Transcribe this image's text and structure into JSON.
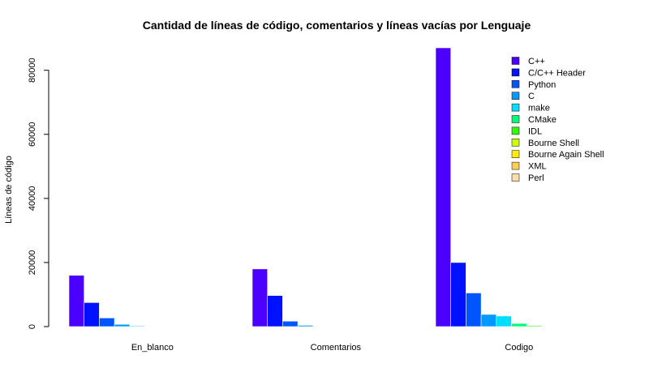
{
  "chart_data": {
    "type": "bar",
    "title": "Cantidad de líneas de código, comentarios y líneas vacías por Lenguaje",
    "xlabel": "",
    "ylabel": "Líneas de código",
    "ylim": [
      0,
      87000
    ],
    "y_ticks": [
      "0",
      "20000",
      "40000",
      "60000",
      "80000"
    ],
    "grid": false,
    "legend_position": "top-right",
    "categories": [
      "En_blanco",
      "Comentarios",
      "Codigo"
    ],
    "series": [
      {
        "name": "C++",
        "color": "#4B00FF",
        "values": [
          16000,
          18000,
          87000
        ]
      },
      {
        "name": "C/C++ Header",
        "color": "#0011FF",
        "values": [
          7500,
          9700,
          20000
        ]
      },
      {
        "name": "Python",
        "color": "#0055FF",
        "values": [
          2700,
          1700,
          10500
        ]
      },
      {
        "name": "C",
        "color": "#0099FF",
        "values": [
          700,
          400,
          3800
        ]
      },
      {
        "name": "make",
        "color": "#00DDFF",
        "values": [
          250,
          80,
          3300
        ]
      },
      {
        "name": "CMake",
        "color": "#00FF77",
        "values": [
          60,
          40,
          1000
        ]
      },
      {
        "name": "IDL",
        "color": "#33FF00",
        "values": [
          20,
          10,
          300
        ]
      },
      {
        "name": "Bourne Shell",
        "color": "#CCFF00",
        "values": [
          10,
          10,
          80
        ]
      },
      {
        "name": "Bourne Again Shell",
        "color": "#FFEE00",
        "values": [
          5,
          5,
          40
        ]
      },
      {
        "name": "XML",
        "color": "#FFCC55",
        "values": [
          5,
          2,
          30
        ]
      },
      {
        "name": "Perl",
        "color": "#FFDDAA",
        "values": [
          2,
          2,
          10
        ]
      }
    ]
  }
}
